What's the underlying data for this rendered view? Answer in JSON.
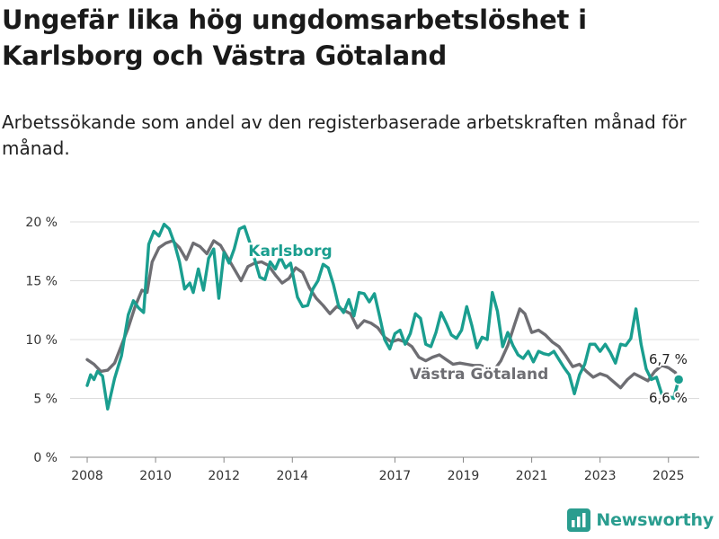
{
  "page": {
    "title": "Ungefär lika hög ungdomsarbetslöshet i Karlsborg och Västra Götaland",
    "subtitle": "Arbetssökande som andel av den registerbaserade arbetskraften månad för månad.",
    "brand": "Newsworthy",
    "brand_icon": "bar-chart-logo-icon",
    "brand_color": "#2a9d8f"
  },
  "chart_data": {
    "type": "line",
    "ylim": [
      0,
      20
    ],
    "xlim": [
      2007.5,
      2025.9
    ],
    "yticks": [
      0,
      5,
      10,
      15,
      20
    ],
    "ytick_labels": [
      "0 %",
      "5 %",
      "10 %",
      "15 %",
      "20 %"
    ],
    "xticks": [
      2008,
      2010,
      2012,
      2014,
      2017,
      2019,
      2021,
      2023,
      2025
    ],
    "xtick_labels": [
      "2008",
      "2010",
      "2012",
      "2014",
      "2017",
      "2019",
      "2021",
      "2023",
      "2025"
    ],
    "grid": true,
    "series": [
      {
        "name": "Västra Götaland",
        "color": "#6e6e73",
        "end_label": "6,7 %",
        "points": [
          [
            2008.0,
            8.3
          ],
          [
            2008.2,
            7.9
          ],
          [
            2008.4,
            7.3
          ],
          [
            2008.6,
            7.4
          ],
          [
            2008.8,
            8.0
          ],
          [
            2009.0,
            9.5
          ],
          [
            2009.2,
            11.0
          ],
          [
            2009.4,
            12.8
          ],
          [
            2009.6,
            14.2
          ],
          [
            2009.75,
            14.0
          ],
          [
            2009.9,
            16.6
          ],
          [
            2010.1,
            17.8
          ],
          [
            2010.3,
            18.2
          ],
          [
            2010.5,
            18.4
          ],
          [
            2010.7,
            17.8
          ],
          [
            2010.9,
            16.8
          ],
          [
            2011.1,
            18.2
          ],
          [
            2011.3,
            17.9
          ],
          [
            2011.5,
            17.3
          ],
          [
            2011.7,
            18.4
          ],
          [
            2011.9,
            18.0
          ],
          [
            2012.1,
            17.0
          ],
          [
            2012.3,
            16.0
          ],
          [
            2012.5,
            15.0
          ],
          [
            2012.7,
            16.2
          ],
          [
            2012.9,
            16.5
          ],
          [
            2013.1,
            16.6
          ],
          [
            2013.3,
            16.3
          ],
          [
            2013.5,
            15.5
          ],
          [
            2013.7,
            14.8
          ],
          [
            2013.9,
            15.2
          ],
          [
            2014.1,
            16.1
          ],
          [
            2014.3,
            15.7
          ],
          [
            2014.5,
            14.4
          ],
          [
            2014.7,
            13.5
          ],
          [
            2014.9,
            12.9
          ],
          [
            2015.1,
            12.2
          ],
          [
            2015.3,
            12.8
          ],
          [
            2015.5,
            12.5
          ],
          [
            2015.7,
            12.2
          ],
          [
            2015.9,
            11.0
          ],
          [
            2016.1,
            11.6
          ],
          [
            2016.3,
            11.4
          ],
          [
            2016.5,
            11.0
          ],
          [
            2016.7,
            10.2
          ],
          [
            2016.9,
            9.8
          ],
          [
            2017.1,
            10.0
          ],
          [
            2017.3,
            9.8
          ],
          [
            2017.5,
            9.4
          ],
          [
            2017.7,
            8.5
          ],
          [
            2017.9,
            8.2
          ],
          [
            2018.1,
            8.5
          ],
          [
            2018.3,
            8.7
          ],
          [
            2018.5,
            8.3
          ],
          [
            2018.7,
            7.9
          ],
          [
            2018.9,
            8.0
          ],
          [
            2019.1,
            7.9
          ],
          [
            2019.3,
            7.8
          ],
          [
            2019.5,
            7.8
          ],
          [
            2019.7,
            7.6
          ],
          [
            2019.9,
            7.4
          ],
          [
            2020.1,
            8.2
          ],
          [
            2020.3,
            9.5
          ],
          [
            2020.5,
            11.3
          ],
          [
            2020.65,
            12.6
          ],
          [
            2020.8,
            12.2
          ],
          [
            2021.0,
            10.6
          ],
          [
            2021.2,
            10.8
          ],
          [
            2021.4,
            10.4
          ],
          [
            2021.6,
            9.8
          ],
          [
            2021.8,
            9.4
          ],
          [
            2022.0,
            8.6
          ],
          [
            2022.2,
            7.7
          ],
          [
            2022.4,
            7.9
          ],
          [
            2022.6,
            7.3
          ],
          [
            2022.8,
            6.8
          ],
          [
            2023.0,
            7.1
          ],
          [
            2023.2,
            6.9
          ],
          [
            2023.4,
            6.4
          ],
          [
            2023.6,
            5.9
          ],
          [
            2023.8,
            6.6
          ],
          [
            2024.0,
            7.1
          ],
          [
            2024.2,
            6.8
          ],
          [
            2024.4,
            6.5
          ],
          [
            2024.6,
            7.3
          ],
          [
            2024.8,
            7.8
          ],
          [
            2025.0,
            7.6
          ],
          [
            2025.2,
            7.2
          ],
          [
            2025.3,
            6.7
          ]
        ]
      },
      {
        "name": "Karlsborg",
        "color": "#1a9e8f",
        "end_label": "6,6 %",
        "points": [
          [
            2008.0,
            6.1
          ],
          [
            2008.1,
            7.0
          ],
          [
            2008.2,
            6.6
          ],
          [
            2008.3,
            7.3
          ],
          [
            2008.45,
            6.9
          ],
          [
            2008.6,
            4.1
          ],
          [
            2008.8,
            6.7
          ],
          [
            2009.0,
            8.6
          ],
          [
            2009.2,
            12.1
          ],
          [
            2009.35,
            13.3
          ],
          [
            2009.5,
            12.7
          ],
          [
            2009.65,
            12.3
          ],
          [
            2009.8,
            18.1
          ],
          [
            2009.95,
            19.2
          ],
          [
            2010.1,
            18.8
          ],
          [
            2010.25,
            19.8
          ],
          [
            2010.4,
            19.4
          ],
          [
            2010.55,
            18.2
          ],
          [
            2010.7,
            16.6
          ],
          [
            2010.85,
            14.3
          ],
          [
            2011.0,
            14.8
          ],
          [
            2011.1,
            14.0
          ],
          [
            2011.25,
            16.0
          ],
          [
            2011.4,
            14.2
          ],
          [
            2011.55,
            16.9
          ],
          [
            2011.7,
            17.7
          ],
          [
            2011.85,
            13.5
          ],
          [
            2012.0,
            17.4
          ],
          [
            2012.15,
            16.5
          ],
          [
            2012.3,
            17.7
          ],
          [
            2012.45,
            19.4
          ],
          [
            2012.6,
            19.6
          ],
          [
            2012.75,
            18.3
          ],
          [
            2012.9,
            16.8
          ],
          [
            2013.05,
            15.3
          ],
          [
            2013.2,
            15.1
          ],
          [
            2013.35,
            16.6
          ],
          [
            2013.5,
            16.0
          ],
          [
            2013.65,
            17.0
          ],
          [
            2013.8,
            16.1
          ],
          [
            2013.95,
            16.5
          ],
          [
            2014.05,
            15.0
          ],
          [
            2014.15,
            13.6
          ],
          [
            2014.3,
            12.8
          ],
          [
            2014.45,
            12.9
          ],
          [
            2014.6,
            14.3
          ],
          [
            2014.75,
            15.0
          ],
          [
            2014.9,
            16.4
          ],
          [
            2015.05,
            16.1
          ],
          [
            2015.2,
            14.7
          ],
          [
            2015.35,
            12.9
          ],
          [
            2015.5,
            12.3
          ],
          [
            2015.65,
            13.4
          ],
          [
            2015.8,
            12.0
          ],
          [
            2015.95,
            14.0
          ],
          [
            2016.1,
            13.9
          ],
          [
            2016.25,
            13.2
          ],
          [
            2016.4,
            13.9
          ],
          [
            2016.55,
            12.0
          ],
          [
            2016.7,
            10.0
          ],
          [
            2016.85,
            9.2
          ],
          [
            2017.0,
            10.5
          ],
          [
            2017.15,
            10.8
          ],
          [
            2017.3,
            9.6
          ],
          [
            2017.45,
            10.5
          ],
          [
            2017.6,
            12.2
          ],
          [
            2017.75,
            11.8
          ],
          [
            2017.9,
            9.6
          ],
          [
            2018.05,
            9.4
          ],
          [
            2018.2,
            10.6
          ],
          [
            2018.35,
            12.3
          ],
          [
            2018.5,
            11.4
          ],
          [
            2018.65,
            10.4
          ],
          [
            2018.8,
            10.1
          ],
          [
            2018.95,
            10.8
          ],
          [
            2019.1,
            12.8
          ],
          [
            2019.25,
            11.2
          ],
          [
            2019.4,
            9.3
          ],
          [
            2019.55,
            10.2
          ],
          [
            2019.7,
            10.0
          ],
          [
            2019.85,
            14.0
          ],
          [
            2020.0,
            12.4
          ],
          [
            2020.15,
            9.4
          ],
          [
            2020.3,
            10.6
          ],
          [
            2020.45,
            9.5
          ],
          [
            2020.6,
            8.7
          ],
          [
            2020.75,
            8.4
          ],
          [
            2020.9,
            9.0
          ],
          [
            2021.05,
            8.1
          ],
          [
            2021.2,
            9.0
          ],
          [
            2021.35,
            8.8
          ],
          [
            2021.5,
            8.7
          ],
          [
            2021.65,
            9.0
          ],
          [
            2021.8,
            8.3
          ],
          [
            2021.95,
            7.6
          ],
          [
            2022.1,
            7.0
          ],
          [
            2022.25,
            5.4
          ],
          [
            2022.4,
            7.0
          ],
          [
            2022.55,
            7.9
          ],
          [
            2022.7,
            9.6
          ],
          [
            2022.85,
            9.6
          ],
          [
            2023.0,
            9.0
          ],
          [
            2023.15,
            9.6
          ],
          [
            2023.3,
            8.9
          ],
          [
            2023.45,
            8.0
          ],
          [
            2023.6,
            9.6
          ],
          [
            2023.75,
            9.5
          ],
          [
            2023.9,
            10.1
          ],
          [
            2024.05,
            12.6
          ],
          [
            2024.2,
            9.6
          ],
          [
            2024.35,
            7.5
          ],
          [
            2024.5,
            6.6
          ],
          [
            2024.65,
            6.8
          ],
          [
            2024.8,
            5.4
          ],
          [
            2025.0,
            5.2
          ],
          [
            2025.15,
            5.0
          ],
          [
            2025.3,
            6.6
          ]
        ]
      }
    ]
  }
}
